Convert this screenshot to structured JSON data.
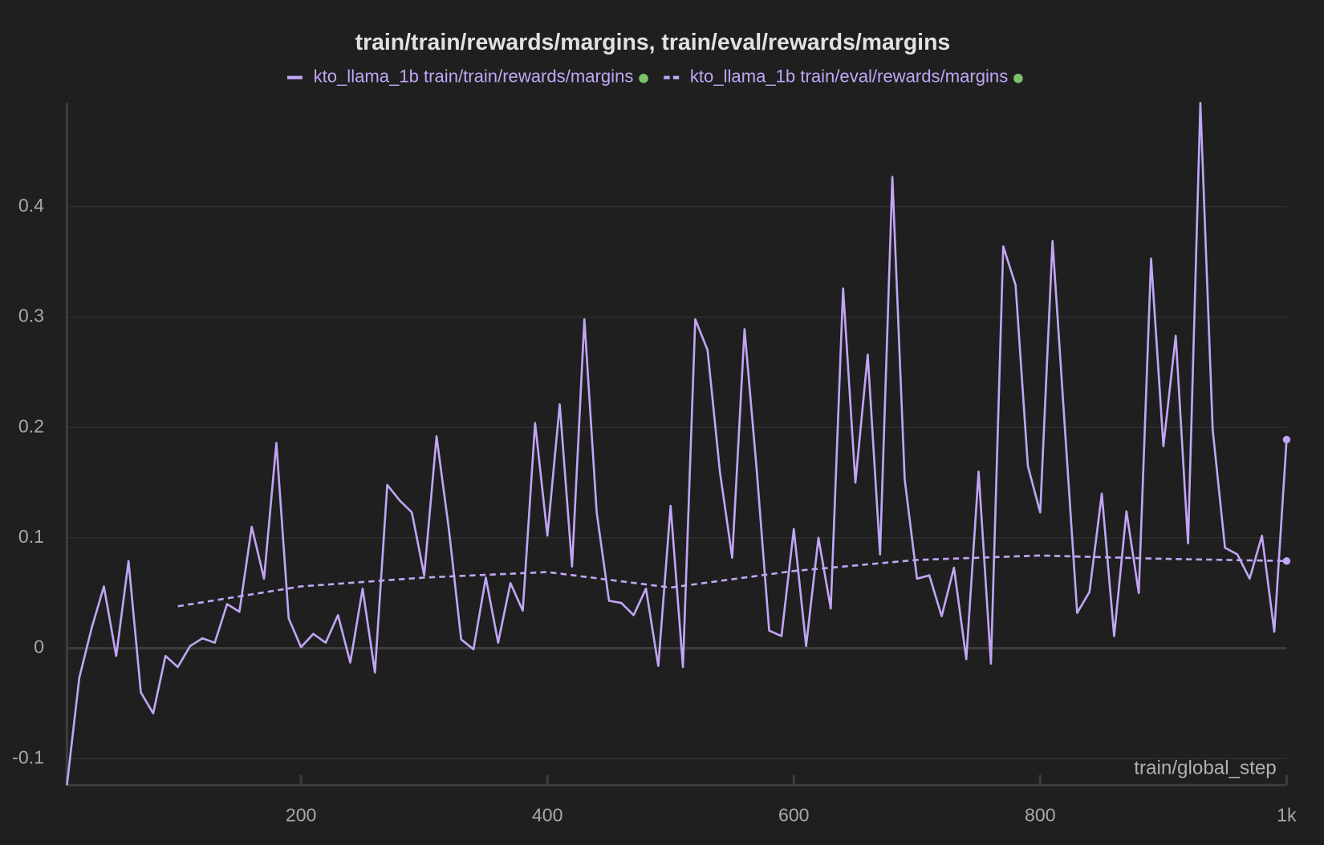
{
  "chart_data": {
    "type": "line",
    "title": "train/train/rewards/margins, train/eval/rewards/margins",
    "xlabel": "train/global_step",
    "legend": "top",
    "legend_marker_color": "#7dc36b",
    "grid": true,
    "xlim": [
      10,
      1000
    ],
    "ylim": [
      -0.124,
      0.494
    ],
    "xticks": [
      200,
      400,
      600,
      800,
      {
        "value": 1000,
        "label": "1k"
      }
    ],
    "yticks": [
      -0.1,
      0,
      0.1,
      0.2,
      0.3,
      0.4
    ],
    "series": [
      {
        "name": "kto_llama_1b train/train/rewards/margins",
        "color": "#c0a6f5",
        "style": "solid",
        "x": [
          10,
          20,
          30,
          40,
          50,
          60,
          70,
          80,
          90,
          100,
          110,
          120,
          130,
          140,
          150,
          160,
          170,
          180,
          190,
          200,
          210,
          220,
          230,
          240,
          250,
          260,
          270,
          280,
          290,
          300,
          310,
          320,
          330,
          340,
          350,
          360,
          370,
          380,
          390,
          400,
          410,
          420,
          430,
          440,
          450,
          460,
          470,
          480,
          490,
          500,
          510,
          520,
          530,
          540,
          550,
          560,
          570,
          580,
          590,
          600,
          610,
          620,
          630,
          640,
          650,
          660,
          670,
          680,
          690,
          700,
          710,
          720,
          730,
          740,
          750,
          760,
          770,
          780,
          790,
          800,
          810,
          820,
          830,
          840,
          850,
          860,
          870,
          880,
          890,
          900,
          910,
          920,
          930,
          940,
          950,
          960,
          970,
          980,
          990,
          1000
        ],
        "values": [
          -0.124,
          -0.027,
          0.018,
          0.056,
          -0.007,
          0.079,
          -0.04,
          -0.059,
          -0.007,
          -0.017,
          0.002,
          0.009,
          0.005,
          0.04,
          0.033,
          0.11,
          0.063,
          0.186,
          0.027,
          0.001,
          0.013,
          0.005,
          0.03,
          -0.013,
          0.054,
          -0.022,
          0.148,
          0.134,
          0.123,
          0.066,
          0.192,
          0.108,
          0.008,
          -0.001,
          0.064,
          0.005,
          0.059,
          0.034,
          0.204,
          0.102,
          0.221,
          0.074,
          0.298,
          0.123,
          0.043,
          0.041,
          0.03,
          0.054,
          -0.016,
          0.129,
          -0.017,
          0.298,
          0.27,
          0.16,
          0.082,
          0.289,
          0.16,
          0.016,
          0.011,
          0.108,
          0.002,
          0.1,
          0.036,
          0.326,
          0.15,
          0.266,
          0.085,
          0.427,
          0.153,
          0.063,
          0.066,
          0.029,
          0.073,
          -0.01,
          0.16,
          -0.014,
          0.364,
          0.329,
          0.165,
          0.123,
          0.369,
          0.2,
          0.032,
          0.051,
          0.14,
          0.011,
          0.124,
          0.05,
          0.353,
          0.183,
          0.283,
          0.095,
          0.494,
          0.198,
          0.091,
          0.085,
          0.063,
          0.102,
          0.015,
          0.189
        ]
      },
      {
        "name": "kto_llama_1b train/eval/rewards/margins",
        "color": "#c0a6f5",
        "style": "dashed",
        "x": [
          100,
          200,
          300,
          400,
          500,
          600,
          700,
          800,
          900,
          1000
        ],
        "values": [
          0.038,
          0.056,
          0.064,
          0.069,
          0.055,
          0.07,
          0.08,
          0.084,
          0.081,
          0.079
        ]
      }
    ]
  }
}
